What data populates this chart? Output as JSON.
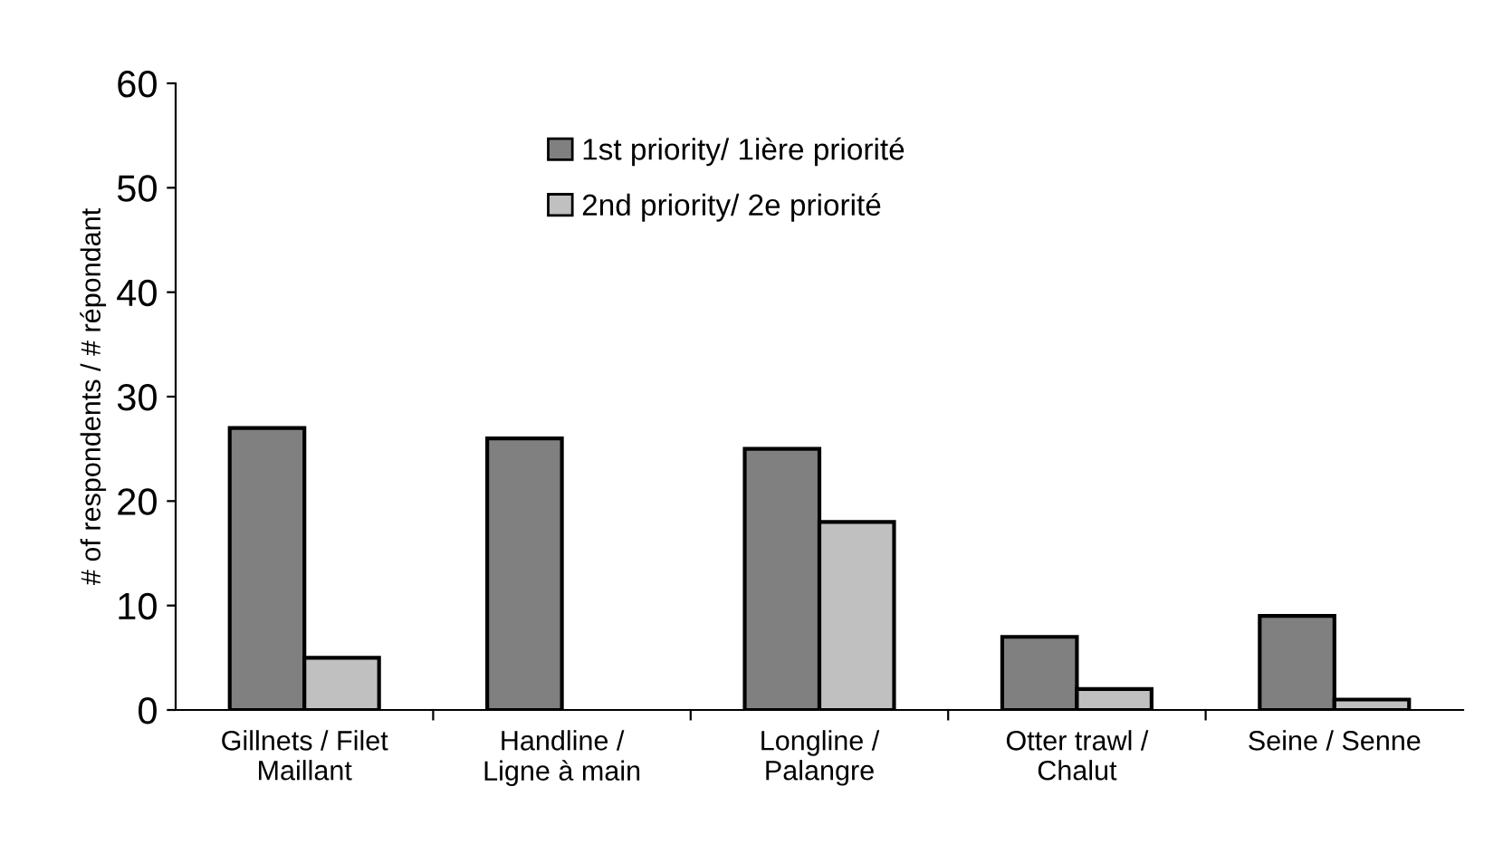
{
  "chart_data": {
    "type": "bar",
    "ylabel": "# of respondents / # répondant",
    "categories": [
      "Gillnets / Filet\nMaillant",
      "Handline /\nLigne à main",
      "Longline /\nPalangre",
      "Otter trawl /\nChalut",
      "Seine / Senne"
    ],
    "series": [
      {
        "name": "1st priority/ 1ière priorité",
        "color": "#808080",
        "values": [
          27,
          26,
          25,
          7,
          9
        ]
      },
      {
        "name": "2nd priority/ 2e priorité",
        "color": "#c0c0c0",
        "values": [
          5,
          null,
          18,
          2,
          1
        ]
      }
    ],
    "ylim": [
      0,
      60
    ],
    "yticks": [
      0,
      10,
      20,
      30,
      40,
      50,
      60
    ],
    "grid": false,
    "legend": "top"
  }
}
